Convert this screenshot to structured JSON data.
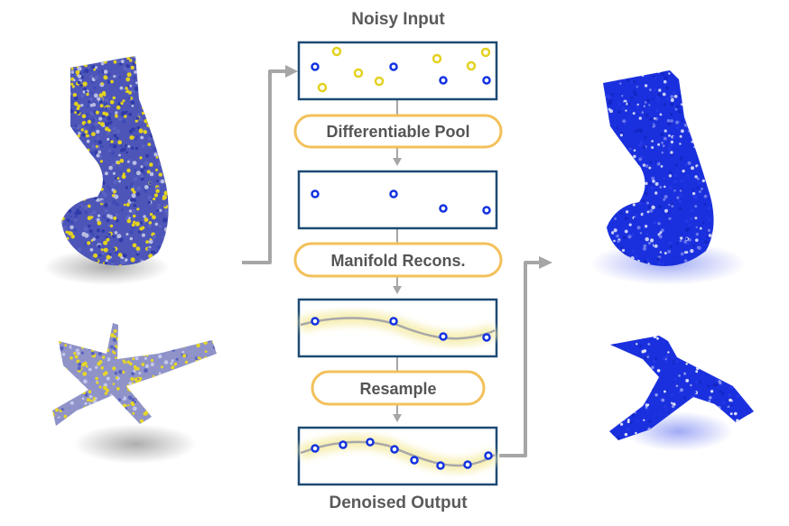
{
  "diagram": {
    "top_label": "Noisy Input",
    "bottom_label": "Denoised Output",
    "steps": [
      {
        "label": "Differentiable Pool"
      },
      {
        "label": "Manifold Recons."
      },
      {
        "label": "Resample"
      }
    ]
  },
  "colors": {
    "box_stroke": "#1d4a73",
    "point_blue": "#1232e0",
    "point_yellow": "#e3d11f",
    "pill_stroke": "#f3c05a",
    "arrow": "#a6a6a6",
    "curve": "#a8a8a8",
    "curve_glow": "#f7f0b8"
  },
  "icons": {
    "noisy_chair": "point-cloud-chair-icon",
    "noisy_airplane": "point-cloud-airplane-icon",
    "clean_chair": "point-cloud-chair-icon",
    "clean_airplane": "point-cloud-airplane-icon"
  }
}
